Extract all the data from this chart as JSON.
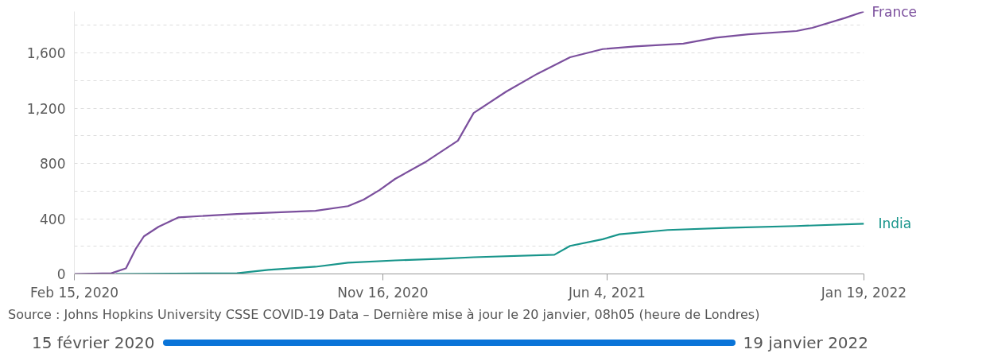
{
  "chart_data": {
    "type": "line",
    "line_style": "solid",
    "grid": "y",
    "xlim": [
      "2020-02-15",
      "2022-01-19"
    ],
    "xticks": [
      {
        "value": "2020-02-15",
        "label": "Feb 15, 2020"
      },
      {
        "value": "2020-11-16",
        "label": "Nov 16, 2020"
      },
      {
        "value": "2021-06-04",
        "label": "Jun 4, 2021"
      },
      {
        "value": "2022-01-19",
        "label": "Jan 19, 2022"
      }
    ],
    "ylim": [
      0,
      1900
    ],
    "yticks": [
      0,
      {
        "value": 200,
        "label": null
      },
      400,
      {
        "value": 600,
        "label": null
      },
      800,
      {
        "value": 1000,
        "label": null
      },
      {
        "value": 1200,
        "label": "1,200"
      },
      {
        "value": 1400,
        "label": null
      },
      {
        "value": 1600,
        "label": "1,600"
      },
      {
        "value": 1800,
        "label": null
      }
    ],
    "series": [
      {
        "name": "France",
        "color": "#7b4f9d",
        "x": [
          "2020-02-15",
          "2020-03-19",
          "2020-04-01",
          "2020-04-10",
          "2020-04-17",
          "2020-04-30",
          "2020-05-18",
          "2020-07-09",
          "2020-09-17",
          "2020-10-16",
          "2020-10-30",
          "2020-11-13",
          "2020-11-27",
          "2020-12-25",
          "2021-01-22",
          "2021-02-05",
          "2021-03-06",
          "2021-04-03",
          "2021-05-02",
          "2021-05-31",
          "2021-06-29",
          "2021-08-11",
          "2021-09-09",
          "2021-10-08",
          "2021-11-20",
          "2021-12-04",
          "2022-01-02",
          "2022-01-19"
        ],
        "values": [
          0,
          5,
          40,
          185,
          272,
          341,
          410,
          434,
          457,
          491,
          538,
          607,
          688,
          815,
          965,
          1165,
          1320,
          1450,
          1569,
          1628,
          1647,
          1668,
          1711,
          1735,
          1759,
          1782,
          1853,
          1900
        ]
      },
      {
        "name": "India",
        "color": "#18958b",
        "x": [
          "2020-03-23",
          "2020-07-09",
          "2020-08-06",
          "2020-09-17",
          "2020-10-16",
          "2020-11-27",
          "2021-01-08",
          "2021-02-05",
          "2021-04-18",
          "2021-05-02",
          "2021-05-31",
          "2021-06-15",
          "2021-07-28",
          "2021-09-23",
          "2021-11-20",
          "2022-01-19"
        ],
        "values": [
          0,
          5,
          29,
          52,
          81,
          98,
          110,
          121,
          139,
          203,
          251,
          287,
          318,
          335,
          347,
          364
        ]
      }
    ],
    "annotations": [
      "Source : Johns Hopkins University CSSE COVID-19 Data – Dernière mise à jour le 20 janvier, 08h05 (heure de Londres)",
      "15 février 2020",
      "19 janvier 2022"
    ]
  }
}
